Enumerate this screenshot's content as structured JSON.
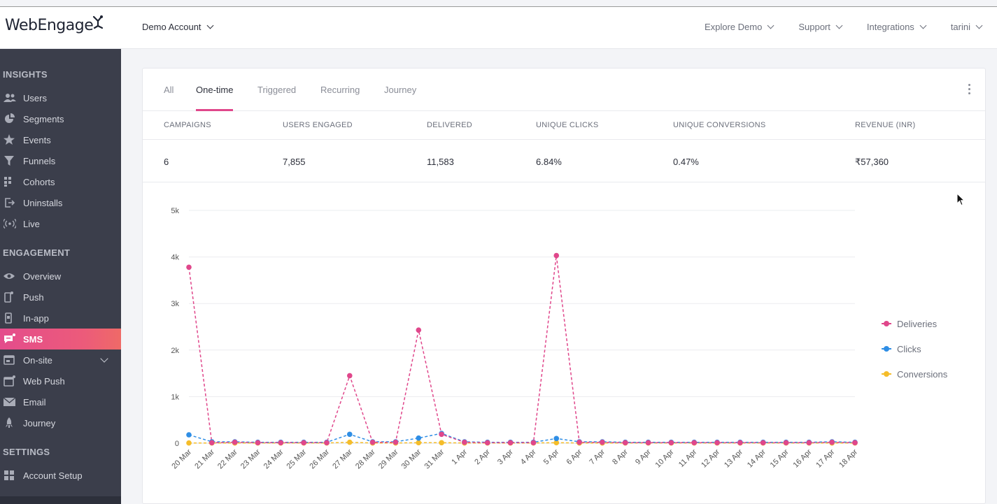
{
  "brand": {
    "logo_text": "WebEngage"
  },
  "header": {
    "account_label": "Demo Account",
    "nav": [
      {
        "label": "Explore Demo"
      },
      {
        "label": "Support"
      },
      {
        "label": "Integrations"
      },
      {
        "label": "tarini"
      }
    ]
  },
  "sidebar": {
    "sections": [
      {
        "title": "INSIGHTS",
        "items": [
          {
            "label": "Users",
            "icon": "users-icon"
          },
          {
            "label": "Segments",
            "icon": "pie-icon"
          },
          {
            "label": "Events",
            "icon": "star-icon"
          },
          {
            "label": "Funnels",
            "icon": "funnel-icon"
          },
          {
            "label": "Cohorts",
            "icon": "grid-icon"
          },
          {
            "label": "Uninstalls",
            "icon": "exit-icon"
          },
          {
            "label": "Live",
            "icon": "broadcast-icon"
          }
        ]
      },
      {
        "title": "ENGAGEMENT",
        "items": [
          {
            "label": "Overview",
            "icon": "eye-icon"
          },
          {
            "label": "Push",
            "icon": "mobile-icon"
          },
          {
            "label": "In-app",
            "icon": "mobile-app-icon"
          },
          {
            "label": "SMS",
            "icon": "message-icon",
            "active": true
          },
          {
            "label": "On-site",
            "icon": "browser-icon"
          },
          {
            "label": "Web Push",
            "icon": "web-push-icon"
          },
          {
            "label": "Email",
            "icon": "mail-icon"
          },
          {
            "label": "Journey",
            "icon": "rocket-icon"
          }
        ]
      },
      {
        "title": "SETTINGS",
        "items": [
          {
            "label": "Account Setup",
            "icon": "setup-icon"
          }
        ]
      }
    ]
  },
  "tabs": [
    {
      "label": "All"
    },
    {
      "label": "One-time",
      "active": true
    },
    {
      "label": "Triggered"
    },
    {
      "label": "Recurring"
    },
    {
      "label": "Journey"
    }
  ],
  "stats": [
    {
      "label": "CAMPAIGNS",
      "value": "6"
    },
    {
      "label": "USERS ENGAGED",
      "value": "7,855"
    },
    {
      "label": "DELIVERED",
      "value": "11,583"
    },
    {
      "label": "UNIQUE CLICKS",
      "value": "6.84%"
    },
    {
      "label": "UNIQUE CONVERSIONS",
      "value": "0.47%"
    },
    {
      "label": "REVENUE (INR)",
      "value": "₹57,360"
    }
  ],
  "colors": {
    "accent": "#e0478b",
    "deliveries": "#e0478b",
    "clicks": "#2f8ee5",
    "conversions": "#f5bd2a"
  },
  "chart_data": {
    "type": "line",
    "x": [
      "20 Mar",
      "21 Mar",
      "22 Mar",
      "23 Mar",
      "24 Mar",
      "25 Mar",
      "26 Mar",
      "27 Mar",
      "28 Mar",
      "29 Mar",
      "30 Mar",
      "31 Mar",
      "1 Apr",
      "2 Apr",
      "3 Apr",
      "4 Apr",
      "5 Apr",
      "6 Apr",
      "7 Apr",
      "8 Apr",
      "9 Apr",
      "10 Apr",
      "11 Apr",
      "12 Apr",
      "13 Apr",
      "14 Apr",
      "15 Apr",
      "16 Apr",
      "17 Apr",
      "18 Apr"
    ],
    "y_ticks": [
      "0",
      "1k",
      "2k",
      "3k",
      "4k",
      "5k"
    ],
    "ylim": [
      0,
      5000
    ],
    "grid": true,
    "legend": "right",
    "series": [
      {
        "name": "Deliveries",
        "color": "#e0478b",
        "values": [
          3780,
          10,
          20,
          10,
          10,
          10,
          10,
          1450,
          20,
          20,
          2430,
          190,
          20,
          10,
          10,
          10,
          4030,
          20,
          20,
          10,
          10,
          10,
          10,
          10,
          10,
          10,
          10,
          10,
          20,
          10
        ]
      },
      {
        "name": "Clicks",
        "color": "#2f8ee5",
        "values": [
          180,
          30,
          30,
          20,
          20,
          20,
          20,
          190,
          30,
          30,
          110,
          210,
          30,
          20,
          20,
          20,
          100,
          30,
          30,
          20,
          20,
          20,
          20,
          20,
          20,
          20,
          20,
          20,
          30,
          20
        ]
      },
      {
        "name": "Conversions",
        "color": "#f5bd2a",
        "values": [
          5,
          5,
          5,
          5,
          5,
          5,
          5,
          20,
          5,
          5,
          10,
          10,
          5,
          5,
          5,
          5,
          10,
          5,
          5,
          5,
          5,
          5,
          5,
          5,
          5,
          5,
          5,
          5,
          5,
          5
        ]
      }
    ]
  }
}
